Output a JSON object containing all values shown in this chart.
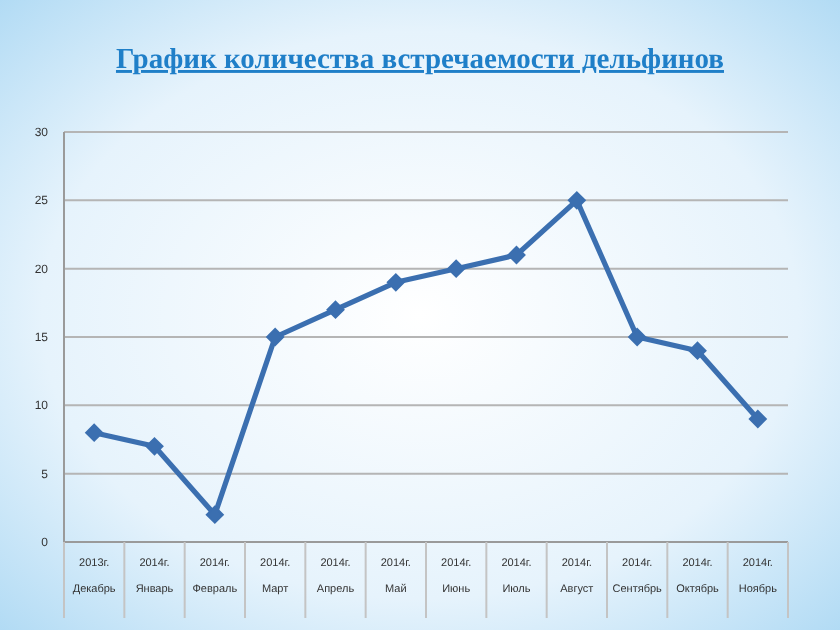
{
  "chart_data": {
    "type": "line",
    "title": "График количества встречаемости дельфинов",
    "categories": [
      "2013г.\nДекабрь",
      "2014г.\nЯнварь",
      "2014г.\nФевраль",
      "2014г.\nМарт",
      "2014г.\nАпрель",
      "2014г.\nМай",
      "2014г.\nИюнь",
      "2014г.\nИюль",
      "2014г.\nАвгуст",
      "2014г.\nСентябрь",
      "2014г.\nОктябрь",
      "2014г.\nНоябрь"
    ],
    "series": [
      {
        "color": "#3b6fb0",
        "values": [
          8,
          7,
          2,
          15,
          17,
          19,
          20,
          21,
          25,
          15,
          14,
          9
        ]
      }
    ],
    "ylim": [
      0,
      30
    ],
    "yticks": [
      0,
      5,
      10,
      15,
      20,
      25,
      30
    ],
    "grid": "y",
    "marker": "diamond",
    "line_style": "solid"
  }
}
